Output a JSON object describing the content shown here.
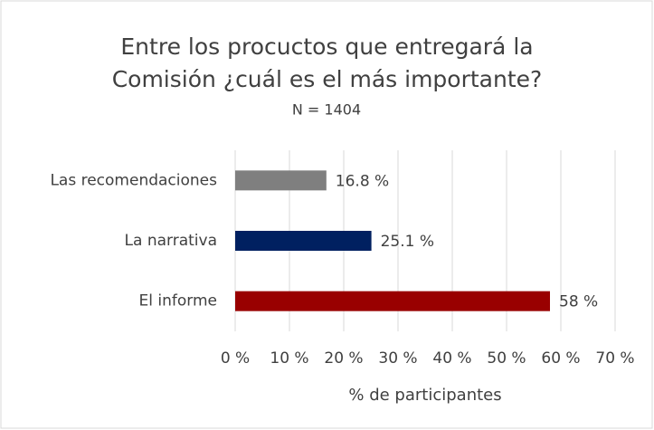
{
  "chart_data": {
    "type": "bar",
    "orientation": "horizontal",
    "title": "Entre los procuctos que entregará la Comisión ¿cuál es el más importante?",
    "subtitle": "N = 1404",
    "x_label": "% de participantes",
    "categories": [
      "Las recomendaciones",
      "La narrativa",
      "El informe"
    ],
    "values": [
      16.8,
      25.1,
      58
    ],
    "value_labels": [
      "16.8 %",
      "25.1 %",
      "58 %"
    ],
    "colors": [
      "#7f7f7f",
      "#002060",
      "#990000"
    ],
    "xlim": [
      0,
      70
    ],
    "xticks": [
      {
        "value": 0,
        "label": "0 %"
      },
      {
        "value": 10,
        "label": "10 %"
      },
      {
        "value": 20,
        "label": "20 %"
      },
      {
        "value": 30,
        "label": "30 %"
      },
      {
        "value": 40,
        "label": "40 %"
      },
      {
        "value": 50,
        "label": "50 %"
      },
      {
        "value": 60,
        "label": "60 %"
      },
      {
        "value": 70,
        "label": "70 %"
      }
    ],
    "grid": true
  }
}
